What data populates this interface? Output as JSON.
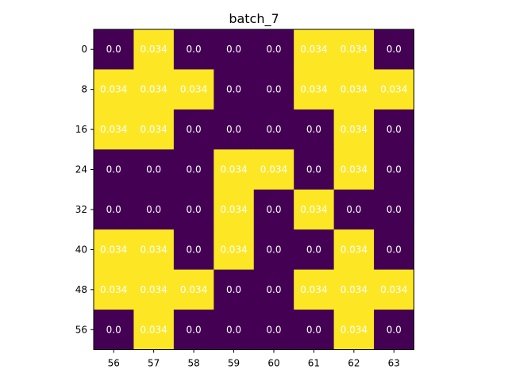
{
  "chart_data": {
    "type": "heatmap",
    "title": "batch_7",
    "xlabel": "",
    "ylabel": "",
    "x_tick_labels": [
      "56",
      "57",
      "58",
      "59",
      "60",
      "61",
      "62",
      "63"
    ],
    "y_tick_labels": [
      "0",
      "8",
      "16",
      "24",
      "32",
      "40",
      "48",
      "56"
    ],
    "colormap": {
      "low": "#440154",
      "high": "#fde725"
    },
    "value_range": [
      0.0,
      0.034
    ],
    "values": [
      [
        0.0,
        0.034,
        0.0,
        0.0,
        0.0,
        0.034,
        0.034,
        0.0
      ],
      [
        0.034,
        0.034,
        0.034,
        0.0,
        0.0,
        0.034,
        0.034,
        0.034
      ],
      [
        0.034,
        0.034,
        0.0,
        0.0,
        0.0,
        0.0,
        0.034,
        0.0
      ],
      [
        0.0,
        0.0,
        0.0,
        0.034,
        0.034,
        0.0,
        0.034,
        0.0
      ],
      [
        0.0,
        0.0,
        0.0,
        0.034,
        0.0,
        0.034,
        0.0,
        0.0
      ],
      [
        0.034,
        0.034,
        0.0,
        0.034,
        0.0,
        0.0,
        0.034,
        0.0
      ],
      [
        0.034,
        0.034,
        0.034,
        0.0,
        0.0,
        0.034,
        0.034,
        0.034
      ],
      [
        0.0,
        0.034,
        0.0,
        0.0,
        0.0,
        0.0,
        0.034,
        0.0
      ]
    ],
    "cell_labels": [
      [
        "0.0",
        "0.034",
        "0.0",
        "0.0",
        "0.0",
        "0.034",
        "0.034",
        "0.0"
      ],
      [
        "0.034",
        "0.034",
        "0.034",
        "0.0",
        "0.0",
        "0.034",
        "0.034",
        "0.034"
      ],
      [
        "0.034",
        "0.034",
        "0.0",
        "0.0",
        "0.0",
        "0.0",
        "0.034",
        "0.0"
      ],
      [
        "0.0",
        "0.0",
        "0.0",
        "0.034",
        "0.034",
        "0.0",
        "0.034",
        "0.0"
      ],
      [
        "0.0",
        "0.0",
        "0.0",
        "0.034",
        "0.0",
        "0.034",
        "0.0",
        "0.0"
      ],
      [
        "0.034",
        "0.034",
        "0.0",
        "0.034",
        "0.0",
        "0.0",
        "0.034",
        "0.0"
      ],
      [
        "0.034",
        "0.034",
        "0.034",
        "0.0",
        "0.0",
        "0.034",
        "0.034",
        "0.034"
      ],
      [
        "0.0",
        "0.034",
        "0.0",
        "0.0",
        "0.0",
        "0.0",
        "0.034",
        "0.0"
      ]
    ],
    "grid": false,
    "legend": "none"
  }
}
